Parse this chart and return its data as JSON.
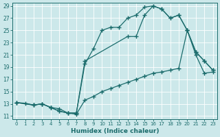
{
  "xlabel": "Humidex (Indice chaleur)",
  "background_color": "#cce8ea",
  "line_color": "#1a6b6b",
  "grid_color": "#ffffff",
  "xlim": [
    -0.5,
    23.5
  ],
  "ylim": [
    10.5,
    29.5
  ],
  "yticks": [
    11,
    13,
    15,
    17,
    19,
    21,
    23,
    25,
    27,
    29
  ],
  "xticks": [
    0,
    1,
    2,
    3,
    4,
    5,
    6,
    7,
    8,
    9,
    10,
    11,
    12,
    13,
    14,
    15,
    16,
    17,
    18,
    19,
    20,
    21,
    22,
    23
  ],
  "line_bottom_x": [
    0,
    1,
    2,
    3,
    4,
    5,
    6,
    7,
    8,
    9,
    10,
    11,
    12,
    13,
    14,
    15,
    16,
    17,
    18,
    19,
    20,
    21,
    22,
    23
  ],
  "line_bottom_y": [
    13.2,
    13.1,
    12.8,
    13.0,
    12.4,
    12.2,
    11.5,
    11.3,
    13.6,
    14.2,
    15.0,
    15.5,
    16.0,
    16.5,
    17.0,
    17.5,
    18.0,
    18.2,
    18.5,
    18.8,
    25.0,
    21.0,
    18.0,
    18.2
  ],
  "line_mid_x": [
    0,
    2,
    3,
    4,
    5,
    6,
    7,
    8,
    9,
    10,
    11,
    12,
    13,
    14,
    15,
    16,
    17,
    18,
    19,
    20,
    21,
    22,
    23
  ],
  "line_mid_y": [
    13.2,
    12.8,
    13.0,
    12.4,
    11.8,
    11.5,
    11.5,
    19.5,
    22.0,
    25.0,
    25.5,
    25.5,
    27.0,
    27.5,
    28.8,
    29.0,
    28.5,
    27.0,
    27.5,
    25.0,
    21.5,
    20.0,
    18.5
  ],
  "line_top_x": [
    0,
    2,
    3,
    4,
    5,
    6,
    7,
    8,
    13,
    14,
    15,
    16,
    17,
    18,
    19,
    20,
    21,
    22,
    23
  ],
  "line_top_y": [
    13.2,
    12.8,
    13.0,
    12.4,
    11.8,
    11.5,
    11.5,
    20.0,
    24.0,
    24.0,
    27.5,
    29.0,
    28.5,
    27.0,
    27.5,
    25.0,
    21.5,
    20.0,
    18.5
  ]
}
